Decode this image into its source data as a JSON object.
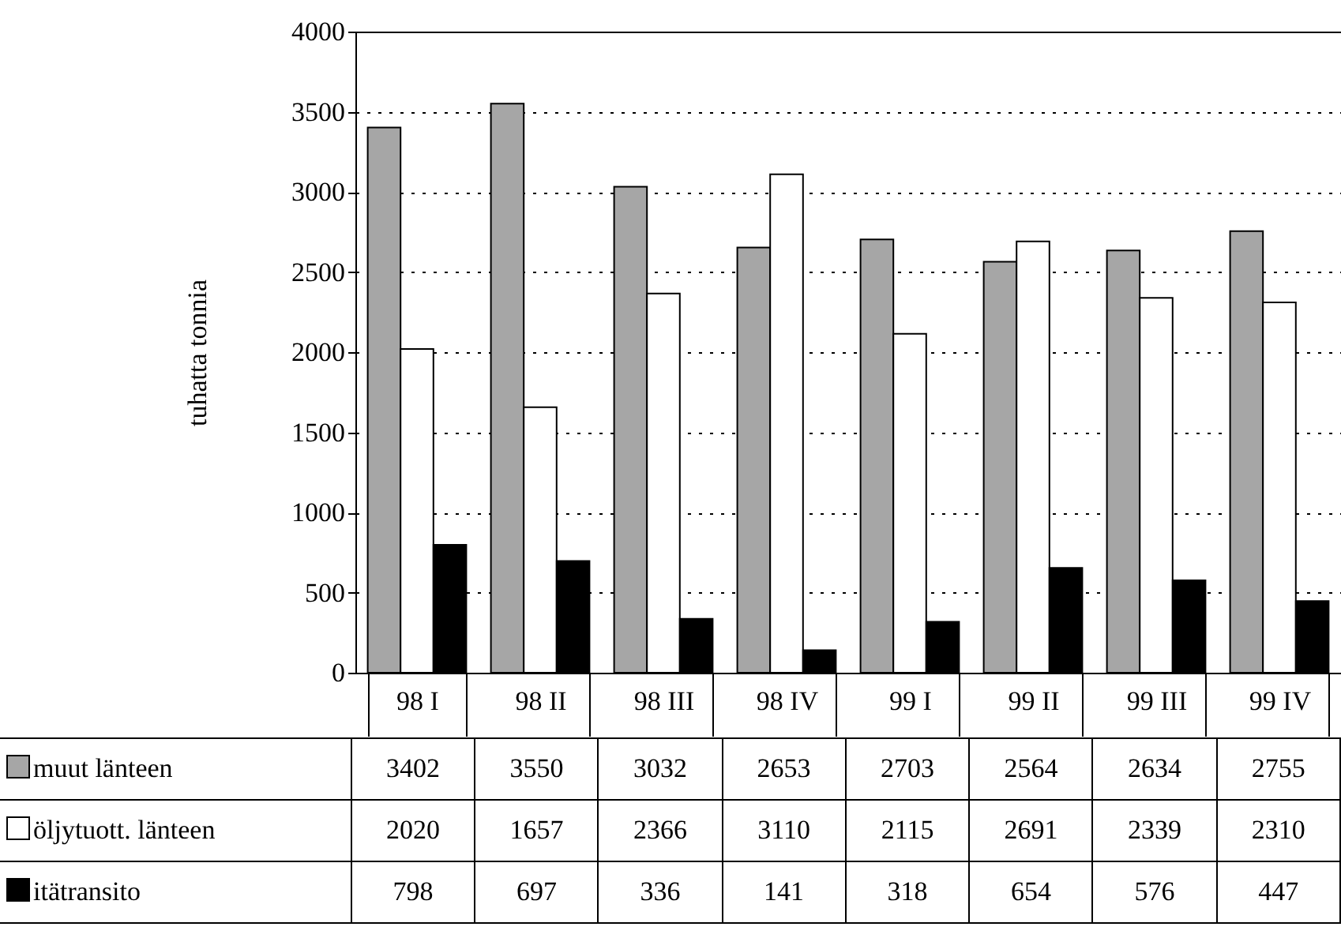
{
  "chart_data": {
    "type": "bar",
    "ylabel": "tuhatta tonnia",
    "categories": [
      "98 I",
      "98 II",
      "98 III",
      "98 IV",
      "99 I",
      "99 II",
      "99 III",
      "99 IV"
    ],
    "series": [
      {
        "name": "muut länteen",
        "color": "#a6a6a6",
        "values": [
          3402,
          3550,
          3032,
          2653,
          2703,
          2564,
          2634,
          2755
        ]
      },
      {
        "name": "öljytuott. länteen",
        "color": "#ffffff",
        "values": [
          2020,
          1657,
          2366,
          3110,
          2115,
          2691,
          2339,
          2310
        ]
      },
      {
        "name": "itätransito",
        "color": "#000000",
        "values": [
          798,
          697,
          336,
          141,
          318,
          654,
          576,
          447
        ]
      }
    ],
    "ylim": [
      0,
      4000
    ],
    "yticks": [
      0,
      500,
      1000,
      1500,
      2000,
      2500,
      3000,
      3500,
      4000
    ],
    "grid": "y",
    "legend": "bottom",
    "data_labels": true
  }
}
